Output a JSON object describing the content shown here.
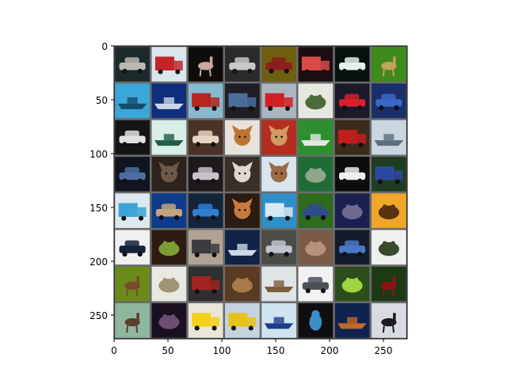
{
  "figure": {
    "x_ticks": [
      "0",
      "50",
      "100",
      "150",
      "200",
      "250"
    ],
    "y_ticks": [
      "0",
      "50",
      "100",
      "150",
      "200",
      "250"
    ],
    "grid": {
      "rows": 8,
      "cols": 8,
      "separator_color": "#6b6b6b"
    },
    "tiles": [
      {
        "bg": "#1c2a2c",
        "fg": "#b9b9b0",
        "subject": "car"
      },
      {
        "bg": "#d9e6ee",
        "fg": "#c2262a",
        "subject": "truck"
      },
      {
        "bg": "#0e0c0b",
        "fg": "#c9a99d",
        "subject": "deer"
      },
      {
        "bg": "#2a2a2a",
        "fg": "#c8c8c8",
        "subject": "car"
      },
      {
        "bg": "#6e5e10",
        "fg": "#8e1d1b",
        "subject": "car"
      },
      {
        "bg": "#1b0e12",
        "fg": "#d94b4a",
        "subject": "truck"
      },
      {
        "bg": "#07120c",
        "fg": "#e2f0ef",
        "subject": "car"
      },
      {
        "bg": "#3e8a1b",
        "fg": "#c7a25c",
        "subject": "deer"
      },
      {
        "bg": "#3aa6d9",
        "fg": "#144d6a",
        "subject": "ship"
      },
      {
        "bg": "#0f2f7d",
        "fg": "#c9d7ea",
        "subject": "ship"
      },
      {
        "bg": "#87b9d1",
        "fg": "#b72521",
        "subject": "truck"
      },
      {
        "bg": "#1e1e24",
        "fg": "#4a6e9a",
        "subject": "truck"
      },
      {
        "bg": "#a9b6c0",
        "fg": "#d21f22",
        "subject": "truck"
      },
      {
        "bg": "#e7e7e2",
        "fg": "#4c6b3a",
        "subject": "frog"
      },
      {
        "bg": "#1a1a2a",
        "fg": "#d81f2b",
        "subject": "car"
      },
      {
        "bg": "#1a2f69",
        "fg": "#3967c9",
        "subject": "car"
      },
      {
        "bg": "#151515",
        "fg": "#e0e0e0",
        "subject": "car"
      },
      {
        "bg": "#d8efe6",
        "fg": "#215d49",
        "subject": "ship"
      },
      {
        "bg": "#4a3226",
        "fg": "#e4d4c1",
        "subject": "car"
      },
      {
        "bg": "#e7e3dc",
        "fg": "#c07433",
        "subject": "dog"
      },
      {
        "bg": "#b22e1e",
        "fg": "#d19a63",
        "subject": "cat"
      },
      {
        "bg": "#2d8f2e",
        "fg": "#e7e7e7",
        "subject": "ship"
      },
      {
        "bg": "#3c2b1a",
        "fg": "#c21d1d",
        "subject": "truck"
      },
      {
        "bg": "#c7d6e1",
        "fg": "#5d6f7d",
        "subject": "ship"
      },
      {
        "bg": "#101520",
        "fg": "#4c6fa1",
        "subject": "car"
      },
      {
        "bg": "#2d231c",
        "fg": "#6e5848",
        "subject": "cat"
      },
      {
        "bg": "#1e1a1c",
        "fg": "#c8c3cb",
        "subject": "car"
      },
      {
        "bg": "#3a2e28",
        "fg": "#e1d7cc",
        "subject": "dog"
      },
      {
        "bg": "#d9e6f0",
        "fg": "#9c6a47",
        "subject": "cat"
      },
      {
        "bg": "#1f6c35",
        "fg": "#8fa68b",
        "subject": "frog"
      },
      {
        "bg": "#0d0d0d",
        "fg": "#eeeeee",
        "subject": "car"
      },
      {
        "bg": "#1e3d21",
        "fg": "#2b49a0",
        "subject": "truck"
      },
      {
        "bg": "#dce9f1",
        "fg": "#3da4d7",
        "subject": "truck"
      },
      {
        "bg": "#0f3b8d",
        "fg": "#c5a37c",
        "subject": "car"
      },
      {
        "bg": "#12253b",
        "fg": "#2f7fd1",
        "subject": "car"
      },
      {
        "bg": "#2a1c12",
        "fg": "#c87a3c",
        "subject": "dog"
      },
      {
        "bg": "#2e8fc9",
        "fg": "#d6e8f3",
        "subject": "truck"
      },
      {
        "bg": "#2d6b1d",
        "fg": "#2e4b8f",
        "subject": "car"
      },
      {
        "bg": "#1b2050",
        "fg": "#6c6a8e",
        "subject": "frog"
      },
      {
        "bg": "#f0a628",
        "fg": "#5a3212",
        "subject": "frog"
      },
      {
        "bg": "#efefef",
        "fg": "#14213a",
        "subject": "car"
      },
      {
        "bg": "#2d1b12",
        "fg": "#7e9c33",
        "subject": "frog"
      },
      {
        "bg": "#b0a393",
        "fg": "#3b3b40",
        "subject": "truck"
      },
      {
        "bg": "#0e2346",
        "fg": "#cfd8e7",
        "subject": "ship"
      },
      {
        "bg": "#4b4b48",
        "fg": "#bfc4cc",
        "subject": "car"
      },
      {
        "bg": "#7a5c46",
        "fg": "#b7917a",
        "subject": "frog"
      },
      {
        "bg": "#111b2c",
        "fg": "#4a78c8",
        "subject": "car"
      },
      {
        "bg": "#eef0ee",
        "fg": "#3a4a2c",
        "subject": "frog"
      },
      {
        "bg": "#6a8a1a",
        "fg": "#7a4a2a",
        "subject": "deer"
      },
      {
        "bg": "#eae8e2",
        "fg": "#9e9577",
        "subject": "frog"
      },
      {
        "bg": "#2f2f2f",
        "fg": "#a02420",
        "subject": "truck"
      },
      {
        "bg": "#5b3a22",
        "fg": "#a87a4a",
        "subject": "frog"
      },
      {
        "bg": "#dfe4e6",
        "fg": "#7a5c3c",
        "subject": "ship"
      },
      {
        "bg": "#f2f2f2",
        "fg": "#4b4f58",
        "subject": "car"
      },
      {
        "bg": "#2d4e1a",
        "fg": "#9fd442",
        "subject": "frog"
      },
      {
        "bg": "#1d3a14",
        "fg": "#8a1414",
        "subject": "deer"
      },
      {
        "bg": "#8fb7a0",
        "fg": "#5a3e2a",
        "subject": "deer"
      },
      {
        "bg": "#1a1020",
        "fg": "#6c4e72",
        "subject": "frog"
      },
      {
        "bg": "#e9e6d8",
        "fg": "#f2d21a",
        "subject": "truck"
      },
      {
        "bg": "#c4d3e0",
        "fg": "#e6c21a",
        "subject": "truck"
      },
      {
        "bg": "#cfe3f0",
        "fg": "#1c3c8a",
        "subject": "ship"
      },
      {
        "bg": "#0f0f12",
        "fg": "#3a8fc9",
        "subject": "bird"
      },
      {
        "bg": "#0e2350",
        "fg": "#c06a2a",
        "subject": "ship"
      },
      {
        "bg": "#d8dce2",
        "fg": "#1a1a1a",
        "subject": "deer"
      }
    ]
  }
}
